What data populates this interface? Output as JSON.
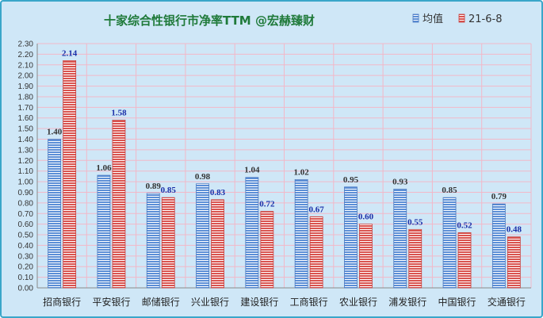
{
  "chart_data": {
    "type": "bar",
    "title": "十家综合性银行市净率TTM   @宏赫臻财",
    "categories": [
      "招商银行",
      "平安银行",
      "邮储银行",
      "兴业银行",
      "建设银行",
      "工商银行",
      "农业银行",
      "浦发银行",
      "中国银行",
      "交通银行"
    ],
    "series": [
      {
        "name": "均值",
        "values": [
          1.4,
          1.06,
          0.89,
          0.98,
          1.04,
          1.02,
          0.95,
          0.93,
          0.85,
          0.79
        ],
        "color": "#5b8ed6"
      },
      {
        "name": "21-6-8",
        "values": [
          2.14,
          1.58,
          0.85,
          0.83,
          0.72,
          0.67,
          0.6,
          0.55,
          0.52,
          0.48
        ],
        "color": "#d9534f"
      }
    ],
    "ylim": [
      0,
      2.3
    ],
    "ytick_step": 0.1,
    "grid": true,
    "legend_position": "top-right"
  }
}
